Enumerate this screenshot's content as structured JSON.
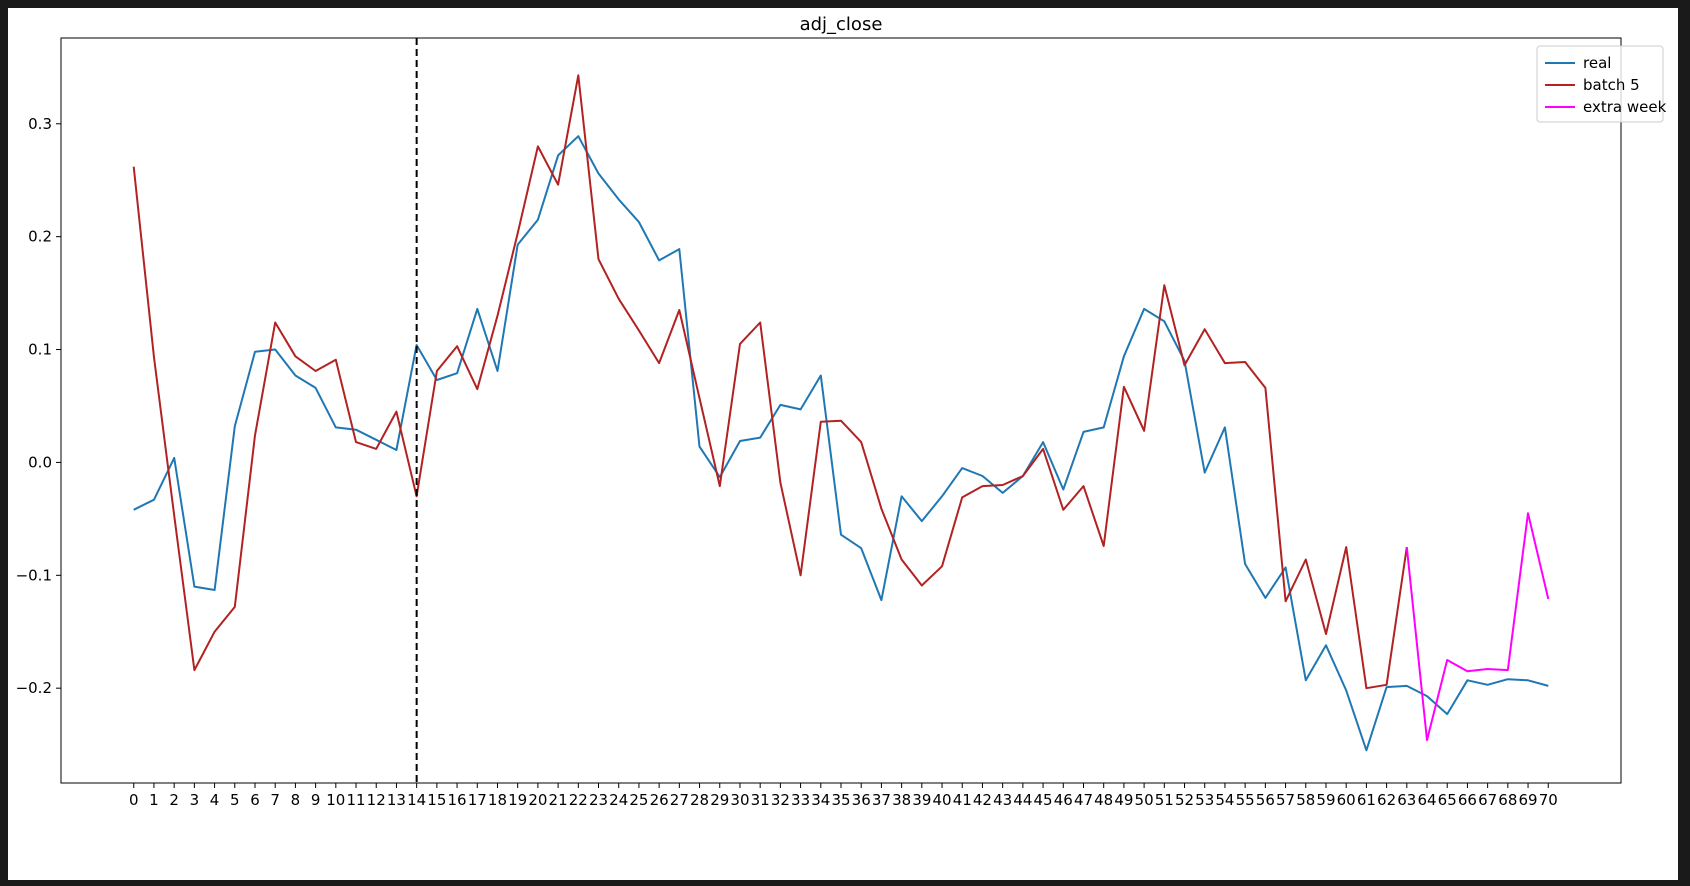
{
  "chart_data": {
    "type": "line",
    "title": "adj_close",
    "xlabel": "",
    "ylabel": "",
    "xlim": [
      -3.6,
      73.6
    ],
    "ylim": [
      -0.284,
      0.376
    ],
    "yticks": [
      -0.2,
      -0.1,
      0.0,
      0.1,
      0.2,
      0.3
    ],
    "ytick_labels": [
      "−0.2",
      "−0.1",
      "0.0",
      "0.1",
      "0.2",
      "0.3"
    ],
    "xticks": [
      0,
      1,
      2,
      3,
      4,
      5,
      6,
      7,
      8,
      9,
      10,
      11,
      12,
      13,
      14,
      15,
      16,
      17,
      18,
      19,
      20,
      21,
      22,
      23,
      24,
      25,
      26,
      27,
      28,
      29,
      30,
      31,
      32,
      33,
      34,
      35,
      36,
      37,
      38,
      39,
      40,
      41,
      42,
      43,
      44,
      45,
      46,
      47,
      48,
      49,
      50,
      51,
      52,
      53,
      54,
      55,
      56,
      57,
      58,
      59,
      60,
      61,
      62,
      63,
      64,
      65,
      66,
      67,
      68,
      69,
      70
    ],
    "xtick_labels": [
      "0",
      "1",
      "2",
      "3",
      "4",
      "5",
      "6",
      "7",
      "8",
      "9",
      "10",
      "11",
      "12",
      "13",
      "14",
      "15",
      "16",
      "17",
      "18",
      "19",
      "20",
      "21",
      "22",
      "23",
      "24",
      "25",
      "26",
      "27",
      "28",
      "29",
      "30",
      "31",
      "32",
      "33",
      "34",
      "35",
      "36",
      "37",
      "38",
      "39",
      "40",
      "41",
      "42",
      "43",
      "44",
      "45",
      "46",
      "47",
      "48",
      "49",
      "50",
      "51",
      "52",
      "53",
      "54",
      "55",
      "56",
      "57",
      "58",
      "59",
      "60",
      "61",
      "62",
      "63",
      "64",
      "65",
      "66",
      "67",
      "68",
      "69",
      "70"
    ],
    "vline": {
      "x": 14,
      "style": "dashed",
      "color": "#000000"
    },
    "grid": false,
    "legend_position": "top-right",
    "series": [
      {
        "name": "real",
        "color": "#1f77b4",
        "x": [
          0,
          1,
          2,
          3,
          4,
          5,
          6,
          7,
          8,
          9,
          10,
          11,
          12,
          13,
          14,
          15,
          16,
          17,
          18,
          19,
          20,
          21,
          22,
          23,
          24,
          25,
          26,
          27,
          28,
          29,
          30,
          31,
          32,
          33,
          34,
          35,
          36,
          37,
          38,
          39,
          40,
          41,
          42,
          43,
          44,
          45,
          46,
          47,
          48,
          49,
          50,
          51,
          52,
          53,
          54,
          55,
          56,
          57,
          58,
          59,
          60,
          61,
          62,
          63,
          64,
          65,
          66,
          67,
          68,
          69,
          70
        ],
        "values": [
          -0.042,
          -0.033,
          0.004,
          -0.11,
          -0.113,
          0.032,
          0.098,
          0.1,
          0.077,
          0.066,
          0.031,
          0.029,
          0.02,
          0.011,
          0.104,
          0.073,
          0.079,
          0.136,
          0.081,
          0.193,
          0.215,
          0.272,
          0.289,
          0.256,
          0.233,
          0.213,
          0.179,
          0.189,
          0.014,
          -0.013,
          0.019,
          0.022,
          0.051,
          0.047,
          0.077,
          -0.064,
          -0.076,
          -0.122,
          -0.03,
          -0.052,
          -0.03,
          -0.005,
          -0.012,
          -0.027,
          -0.012,
          0.018,
          -0.024,
          0.027,
          0.031,
          0.094,
          0.136,
          0.125,
          0.09,
          -0.009,
          0.031,
          -0.09,
          -0.12,
          -0.093,
          -0.193,
          -0.162,
          -0.202,
          -0.255,
          -0.199,
          -0.198,
          -0.207,
          -0.223,
          -0.193,
          -0.197,
          -0.192,
          -0.193,
          -0.198
        ]
      },
      {
        "name": "batch 5",
        "color": "#b22222",
        "x": [
          0,
          1,
          2,
          3,
          4,
          5,
          6,
          7,
          8,
          9,
          10,
          11,
          12,
          13,
          14,
          15,
          16,
          17,
          18,
          19,
          20,
          21,
          22,
          23,
          24,
          25,
          26,
          27,
          28,
          29,
          30,
          31,
          32,
          33,
          34,
          35,
          36,
          37,
          38,
          39,
          40,
          41,
          42,
          43,
          44,
          45,
          46,
          47,
          48,
          49,
          50,
          51,
          52,
          53,
          54,
          55,
          56,
          57,
          58,
          59,
          60,
          61,
          62,
          63
        ],
        "values": [
          0.262,
          0.093,
          -0.047,
          -0.184,
          -0.15,
          -0.128,
          0.024,
          0.124,
          0.094,
          0.081,
          0.091,
          0.018,
          0.012,
          0.045,
          -0.03,
          0.081,
          0.103,
          0.065,
          0.13,
          0.203,
          0.28,
          0.246,
          0.343,
          0.18,
          0.145,
          0.117,
          0.088,
          0.135,
          0.057,
          -0.021,
          0.105,
          0.124,
          -0.018,
          -0.1,
          0.036,
          0.037,
          0.018,
          -0.041,
          -0.086,
          -0.109,
          -0.092,
          -0.031,
          -0.021,
          -0.02,
          -0.012,
          0.012,
          -0.042,
          -0.021,
          -0.074,
          0.067,
          0.028,
          0.157,
          0.086,
          0.118,
          0.088,
          0.089,
          0.066,
          -0.123,
          -0.086,
          -0.152,
          -0.075,
          -0.2,
          -0.197,
          -0.075
        ]
      },
      {
        "name": "extra week",
        "color": "#ff00ff",
        "x": [
          63,
          64,
          65,
          66,
          67,
          68,
          69,
          70
        ],
        "values": [
          -0.075,
          -0.246,
          -0.175,
          -0.185,
          -0.183,
          -0.184,
          -0.045,
          -0.121
        ]
      }
    ]
  }
}
